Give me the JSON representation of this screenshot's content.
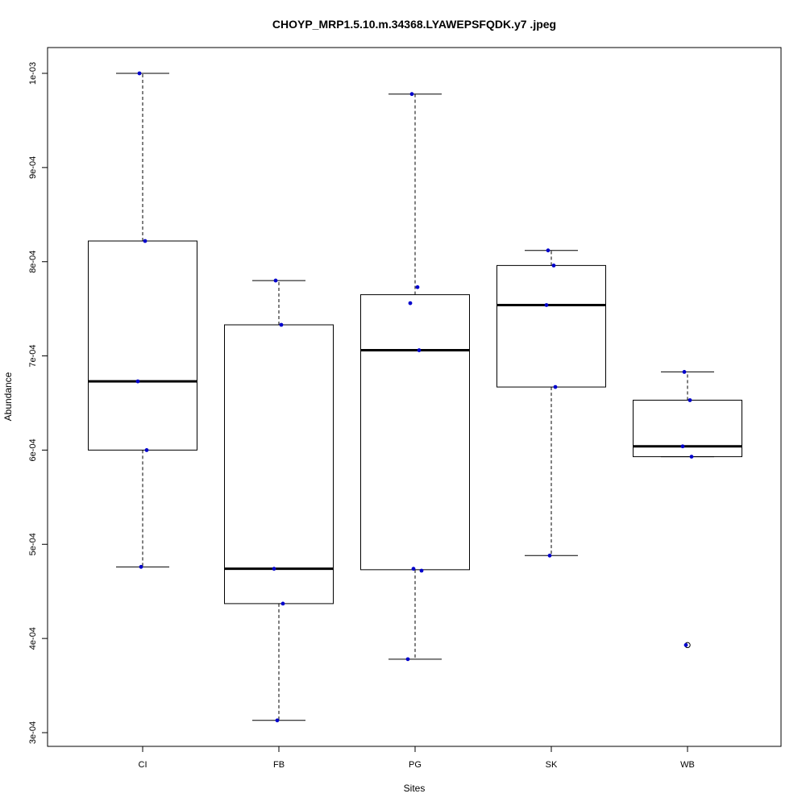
{
  "chart_data": {
    "type": "box",
    "title": "CHOYP_MRP1.5.10.m.34368.LYAWEPSFQDK.y7 .jpeg",
    "xlabel": "Sites",
    "ylabel": "Abundance",
    "ylim": [
      0.0003,
      0.001
    ],
    "yticks": [
      0.0003,
      0.0004,
      0.0005,
      0.0006,
      0.0007,
      0.0008,
      0.0009,
      0.001
    ],
    "ytick_labels": [
      "3e-04",
      "4e-04",
      "5e-04",
      "6e-04",
      "7e-04",
      "8e-04",
      "9e-04",
      "1e-03"
    ],
    "categories": [
      "CI",
      "FB",
      "PG",
      "SK",
      "WB"
    ],
    "colors": {
      "box": "#000000",
      "point": "#0000cc",
      "outlier": "#000000"
    },
    "boxes": [
      {
        "category": "CI",
        "whisker_low": 0.000476,
        "q1": 0.0006,
        "median": 0.000673,
        "q3": 0.000822,
        "whisker_high": 0.001,
        "outliers": [],
        "points": [
          0.001,
          0.000822,
          0.000673,
          0.0006,
          0.000476
        ]
      },
      {
        "category": "FB",
        "whisker_low": 0.000313,
        "q1": 0.000437,
        "median": 0.000474,
        "q3": 0.000733,
        "whisker_high": 0.00078,
        "outliers": [],
        "points": [
          0.00078,
          0.000733,
          0.000474,
          0.000437,
          0.000313
        ]
      },
      {
        "category": "PG",
        "whisker_low": 0.000378,
        "q1": 0.000473,
        "median": 0.000706,
        "q3": 0.000765,
        "whisker_high": 0.000978,
        "outliers": [],
        "points": [
          0.000978,
          0.000773,
          0.000756,
          0.000706,
          0.000474,
          0.000472,
          0.000378
        ]
      },
      {
        "category": "SK",
        "whisker_low": 0.000488,
        "q1": 0.000667,
        "median": 0.000754,
        "q3": 0.000796,
        "whisker_high": 0.000812,
        "outliers": [],
        "points": [
          0.000812,
          0.000796,
          0.000754,
          0.000667,
          0.000488
        ]
      },
      {
        "category": "WB",
        "whisker_low": 0.000593,
        "q1": 0.000593,
        "median": 0.000604,
        "q3": 0.000653,
        "whisker_high": 0.000683,
        "outliers": [
          0.000393
        ],
        "points": [
          0.000683,
          0.000653,
          0.000604,
          0.000593,
          0.000393
        ]
      }
    ]
  }
}
